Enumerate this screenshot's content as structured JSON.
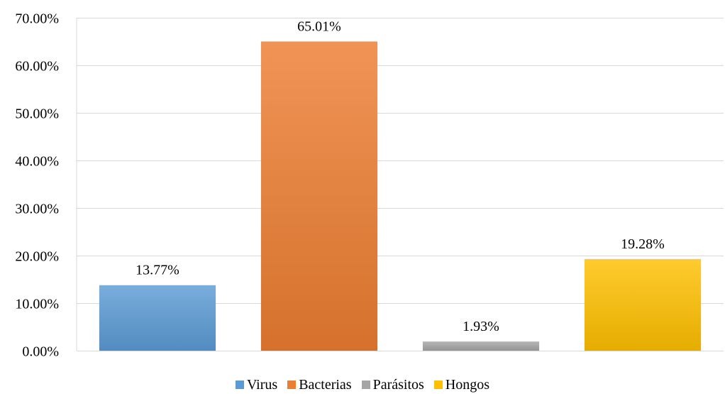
{
  "chart_data": {
    "type": "bar",
    "title": "",
    "xlabel": "",
    "ylabel": "",
    "categories": [
      "Virus",
      "Bacterias",
      "Parásitos",
      "Hongos"
    ],
    "values": [
      13.77,
      65.01,
      1.93,
      19.28
    ],
    "value_labels": [
      "13.77%",
      "65.01%",
      "1.93%",
      "19.28%"
    ],
    "colors": [
      "#5b9bd5",
      "#ed7d31",
      "#a5a5a5",
      "#ffc000"
    ],
    "ylim": [
      0,
      70
    ],
    "yticks": [
      0,
      10,
      20,
      30,
      40,
      50,
      60,
      70
    ],
    "ytick_labels": [
      "0.00%",
      "10.00%",
      "20.00%",
      "30.00%",
      "40.00%",
      "50.00%",
      "60.00%",
      "70.00%"
    ],
    "grid": true,
    "legend_position": "bottom"
  }
}
